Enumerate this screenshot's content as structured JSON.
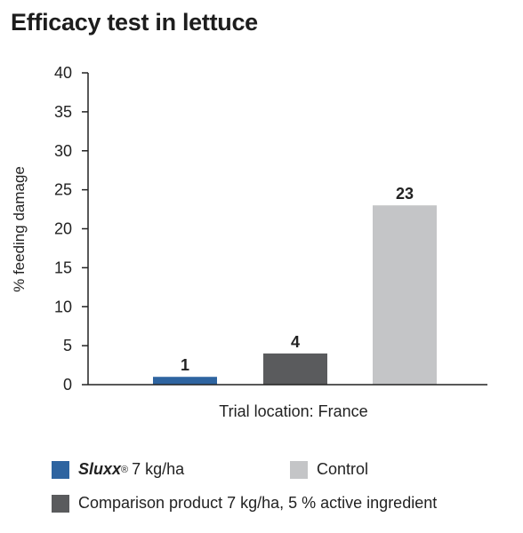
{
  "title": "Efficacy test in lettuce",
  "chart_data": {
    "type": "bar",
    "ylabel": "% feeding damage",
    "xlabel": "Trial location: France",
    "ylim": [
      0,
      40
    ],
    "yticks": [
      0,
      5,
      10,
      15,
      20,
      25,
      30,
      35,
      40
    ],
    "series": [
      {
        "name": "Sluxx® 7 kg/ha",
        "value": 1,
        "color": "#2e64a0"
      },
      {
        "name": "Comparison product 7 kg/ha, 5 % active ingredient",
        "value": 4,
        "color": "#5a5b5d"
      },
      {
        "name": "Control",
        "value": 23,
        "color": "#c4c5c7"
      }
    ],
    "grid": false,
    "legend_position": "bottom"
  },
  "legend": {
    "sluxx_brand": "Sluxx",
    "sluxx_reg": "®",
    "sluxx_rest": "7 kg/ha",
    "control": "Control",
    "comparison": "Comparison product 7 kg/ha, 5 % active ingredient"
  }
}
